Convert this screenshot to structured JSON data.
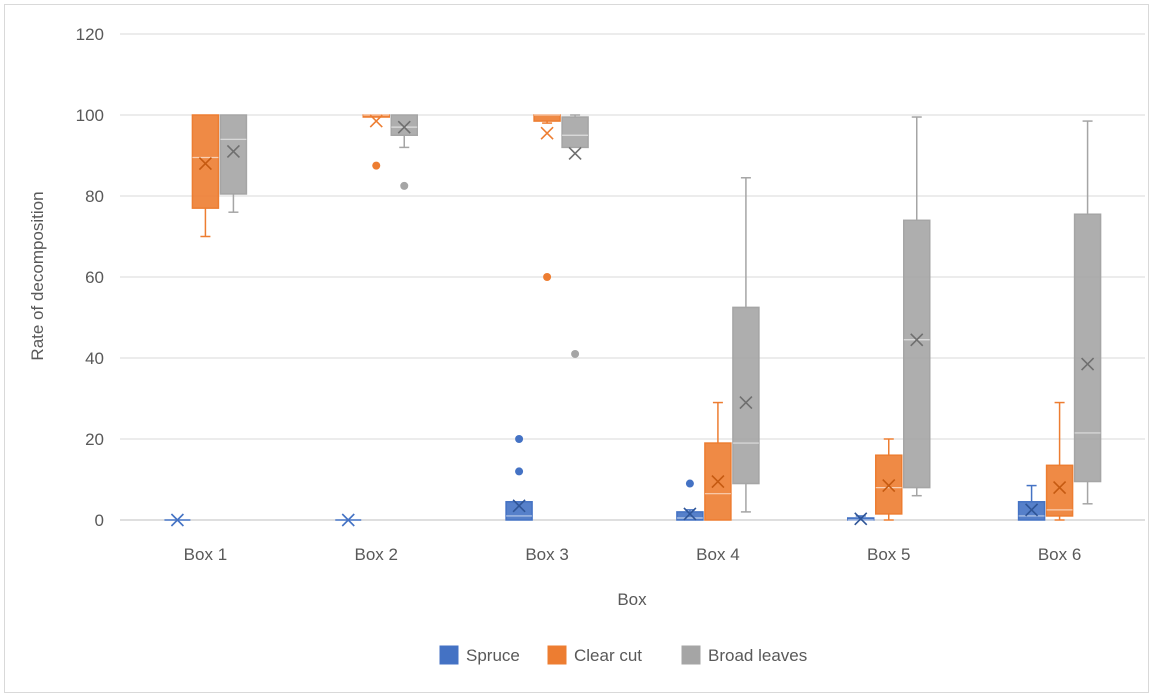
{
  "chart_data": {
    "type": "box",
    "title": "",
    "xlabel": "Box",
    "ylabel": "Rate of decomposition",
    "ylim": [
      0,
      120
    ],
    "yticks": [
      0,
      20,
      40,
      60,
      80,
      100,
      120
    ],
    "grid": true,
    "legend_position": "bottom",
    "categories": [
      "Box 1",
      "Box 2",
      "Box 3",
      "Box 4",
      "Box 5",
      "Box 6"
    ],
    "series": [
      {
        "name": "Spruce",
        "color": "#4472c4",
        "boxes": [
          {
            "min": 0,
            "q1": 0,
            "median": 0,
            "q3": 0,
            "max": 0,
            "mean": 0,
            "outliers": []
          },
          {
            "min": 0,
            "q1": 0,
            "median": 0,
            "q3": 0,
            "max": 0,
            "mean": 0,
            "outliers": []
          },
          {
            "min": 0,
            "q1": 0,
            "median": 1,
            "q3": 4.5,
            "max": 4.5,
            "mean": 3.5,
            "outliers": [
              12,
              20
            ]
          },
          {
            "min": 0,
            "q1": 0,
            "median": 0.5,
            "q3": 2,
            "max": 2.5,
            "mean": 1.5,
            "outliers": [
              9
            ]
          },
          {
            "min": 0,
            "q1": 0,
            "median": 0,
            "q3": 0.5,
            "max": 1,
            "mean": 0.3,
            "outliers": []
          },
          {
            "min": 0,
            "q1": 0,
            "median": 1,
            "q3": 4.5,
            "max": 8.5,
            "mean": 2.5,
            "outliers": []
          }
        ]
      },
      {
        "name": "Clear cut",
        "color": "#ed7d31",
        "boxes": [
          {
            "min": 70,
            "q1": 77,
            "median": 89.5,
            "q3": 100,
            "max": 100,
            "mean": 88,
            "outliers": []
          },
          {
            "min": 99.5,
            "q1": 99.5,
            "median": 100,
            "q3": 100,
            "max": 100,
            "mean": 98.5,
            "outliers": [
              87.5
            ]
          },
          {
            "min": 98,
            "q1": 98.5,
            "median": 100,
            "q3": 100,
            "max": 100,
            "mean": 95.5,
            "outliers": [
              60
            ]
          },
          {
            "min": 0,
            "q1": 0,
            "median": 6.5,
            "q3": 19,
            "max": 29,
            "mean": 9.5,
            "outliers": []
          },
          {
            "min": 0,
            "q1": 1.5,
            "median": 8,
            "q3": 16,
            "max": 20,
            "mean": 8.5,
            "outliers": []
          },
          {
            "min": 0,
            "q1": 1,
            "median": 2.5,
            "q3": 13.5,
            "max": 29,
            "mean": 8,
            "outliers": []
          }
        ]
      },
      {
        "name": "Broad leaves",
        "color": "#a5a5a5",
        "boxes": [
          {
            "min": 76,
            "q1": 80.5,
            "median": 94,
            "q3": 100,
            "max": 100,
            "mean": 91,
            "outliers": []
          },
          {
            "min": 92,
            "q1": 95,
            "median": 97,
            "q3": 100,
            "max": 100,
            "mean": 97,
            "outliers": [
              82.5
            ]
          },
          {
            "min": 92,
            "q1": 92,
            "median": 95,
            "q3": 99.5,
            "max": 100,
            "mean": 90.5,
            "outliers": [
              41
            ]
          },
          {
            "min": 2,
            "q1": 9,
            "median": 19,
            "q3": 52.5,
            "max": 84.5,
            "mean": 29,
            "outliers": []
          },
          {
            "min": 6,
            "q1": 8,
            "median": 44.5,
            "q3": 74,
            "max": 99.5,
            "mean": 44.5,
            "outliers": []
          },
          {
            "min": 4,
            "q1": 9.5,
            "median": 21.5,
            "q3": 75.5,
            "max": 98.5,
            "mean": 38.5,
            "outliers": []
          }
        ]
      }
    ]
  }
}
